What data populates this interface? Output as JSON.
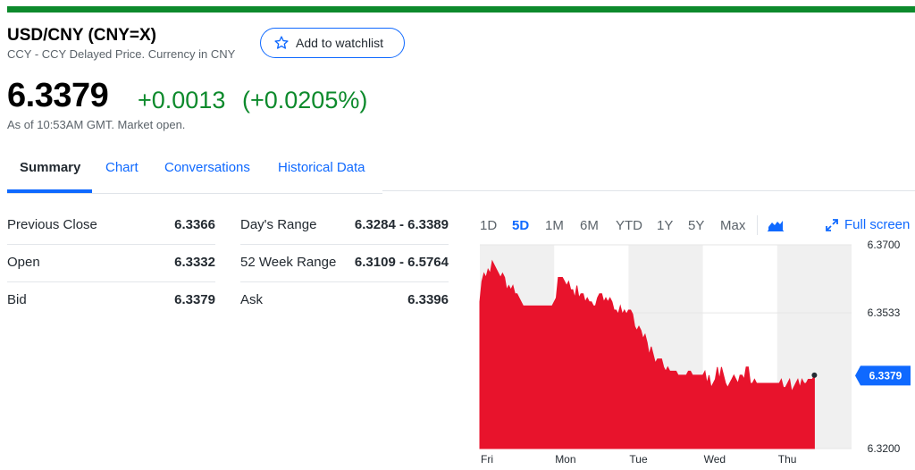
{
  "header": {
    "title": "USD/CNY (CNY=X)",
    "subtitle": "CCY - CCY Delayed Price. Currency in CNY",
    "watchlist_label": "Add to watchlist"
  },
  "quote": {
    "price": "6.3379",
    "change": "+0.0013",
    "change_pct": "(+0.0205%)",
    "as_of": "As of 10:53AM GMT. Market open."
  },
  "tabs": [
    "Summary",
    "Chart",
    "Conversations",
    "Historical Data"
  ],
  "active_tab": "Summary",
  "stats_left": [
    {
      "label": "Previous Close",
      "value": "6.3366"
    },
    {
      "label": "Open",
      "value": "6.3332"
    },
    {
      "label": "Bid",
      "value": "6.3379"
    }
  ],
  "stats_right": [
    {
      "label": "Day's Range",
      "value": "6.3284 - 6.3389"
    },
    {
      "label": "52 Week Range",
      "value": "6.3109 - 6.5764"
    },
    {
      "label": "Ask",
      "value": "6.3396"
    }
  ],
  "chart_controls": {
    "ranges": [
      "1D",
      "5D",
      "1M",
      "6M",
      "YTD",
      "1Y",
      "5Y",
      "Max"
    ],
    "active_range": "5D",
    "chart_type_icon": "mountain-chart-icon",
    "fullscreen_label": "Full screen"
  },
  "colors": {
    "accent": "#0f69ff",
    "positive": "#0d8a2c",
    "chart_fill": "#e8132c",
    "top_bar": "#0d8a2c"
  },
  "chart_data": {
    "type": "area",
    "x_labels": [
      "Fri",
      "Mon",
      "Tue",
      "Wed",
      "Thu"
    ],
    "y_ticks": [
      6.37,
      6.3533,
      6.32
    ],
    "y_tick_labels": [
      "6.3700",
      "6.3533",
      "6.3200"
    ],
    "ylim": [
      6.32,
      6.37
    ],
    "current_value_label": "6.3379",
    "current_value": 6.3379,
    "grid": true,
    "series": [
      {
        "points_per_day": 36,
        "days": [
          "Fri",
          "Mon",
          "Tue",
          "Wed",
          "Thu"
        ],
        "values": [
          6.356,
          6.361,
          6.363,
          6.362,
          6.364,
          6.363,
          6.366,
          6.365,
          6.364,
          6.363,
          6.362,
          6.363,
          6.362,
          6.359,
          6.36,
          6.359,
          6.36,
          6.358,
          6.358,
          6.357,
          6.356,
          6.355,
          6.355,
          6.355,
          6.355,
          6.355,
          6.355,
          6.355,
          6.355,
          6.355,
          6.355,
          6.355,
          6.355,
          6.355,
          6.355,
          6.355,
          6.356,
          6.357,
          6.362,
          6.362,
          6.362,
          6.361,
          6.36,
          6.361,
          6.359,
          6.359,
          6.357,
          6.36,
          6.357,
          6.358,
          6.358,
          6.356,
          6.357,
          6.356,
          6.356,
          6.355,
          6.355,
          6.357,
          6.358,
          6.358,
          6.356,
          6.357,
          6.356,
          6.357,
          6.356,
          6.354,
          6.354,
          6.353,
          6.355,
          6.353,
          6.354,
          6.353,
          6.354,
          6.354,
          6.353,
          6.35,
          6.349,
          6.35,
          6.349,
          6.347,
          6.348,
          6.346,
          6.343,
          6.345,
          6.343,
          6.341,
          6.342,
          6.342,
          6.342,
          6.34,
          6.339,
          6.34,
          6.339,
          6.339,
          6.339,
          6.339,
          6.338,
          6.338,
          6.338,
          6.338,
          6.338,
          6.339,
          6.339,
          6.338,
          6.338,
          6.338,
          6.338,
          6.338,
          6.338,
          6.339,
          6.336,
          6.338,
          6.335,
          6.336,
          6.337,
          6.34,
          6.337,
          6.34,
          6.338,
          6.336,
          6.335,
          6.336,
          6.337,
          6.338,
          6.337,
          6.336,
          6.338,
          6.338,
          6.337,
          6.34,
          6.34,
          6.336,
          6.336,
          6.337,
          6.336,
          6.336,
          6.336,
          6.336,
          6.336,
          6.336,
          6.336,
          6.336,
          6.336,
          6.336,
          6.336,
          6.336,
          6.337,
          6.335,
          6.335,
          6.336,
          6.337,
          6.334,
          6.335,
          6.336,
          6.337,
          6.335,
          6.337,
          6.336,
          6.336,
          6.337,
          6.337,
          6.337,
          6.338
        ]
      }
    ]
  }
}
